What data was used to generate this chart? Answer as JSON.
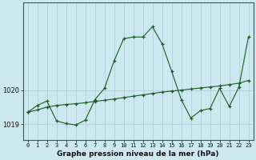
{
  "title": "Graphe pression niveau de la mer (hPa)",
  "background_color": "#cce8f0",
  "grid_color": "#9ecfdf",
  "line_color": "#1a5c1a",
  "x_labels": [
    "0",
    "1",
    "2",
    "3",
    "4",
    "5",
    "6",
    "7",
    "8",
    "9",
    "10",
    "11",
    "12",
    "13",
    "14",
    "15",
    "16",
    "17",
    "18",
    "19",
    "20",
    "21",
    "22",
    "23"
  ],
  "y_ticks": [
    1019,
    1020
  ],
  "ylim": [
    1018.55,
    1022.55
  ],
  "xlim": [
    -0.5,
    23.5
  ],
  "line1_x": [
    0,
    1,
    2,
    3,
    4,
    5,
    6,
    7,
    8,
    9,
    10,
    11,
    12,
    13,
    14,
    15,
    16,
    17,
    18,
    19,
    20,
    21,
    22,
    23
  ],
  "line1_y": [
    1019.35,
    1019.42,
    1019.5,
    1019.55,
    1019.58,
    1019.6,
    1019.63,
    1019.67,
    1019.7,
    1019.74,
    1019.78,
    1019.82,
    1019.86,
    1019.9,
    1019.94,
    1019.97,
    1020.0,
    1020.03,
    1020.06,
    1020.09,
    1020.12,
    1020.16,
    1020.2,
    1020.28
  ],
  "line2_x": [
    0,
    1,
    2,
    3,
    4,
    5,
    6,
    7,
    8,
    9,
    10,
    11,
    12,
    13,
    14,
    15,
    16,
    17,
    18,
    19,
    20,
    21,
    22,
    23
  ],
  "line2_y": [
    1019.35,
    1019.55,
    1019.68,
    1019.1,
    1019.02,
    1018.98,
    1019.12,
    1019.72,
    1020.05,
    1020.85,
    1021.5,
    1021.55,
    1021.55,
    1021.85,
    1021.35,
    1020.55,
    1019.72,
    1019.18,
    1019.4,
    1019.46,
    1020.05,
    1019.52,
    1020.08,
    1021.55
  ]
}
